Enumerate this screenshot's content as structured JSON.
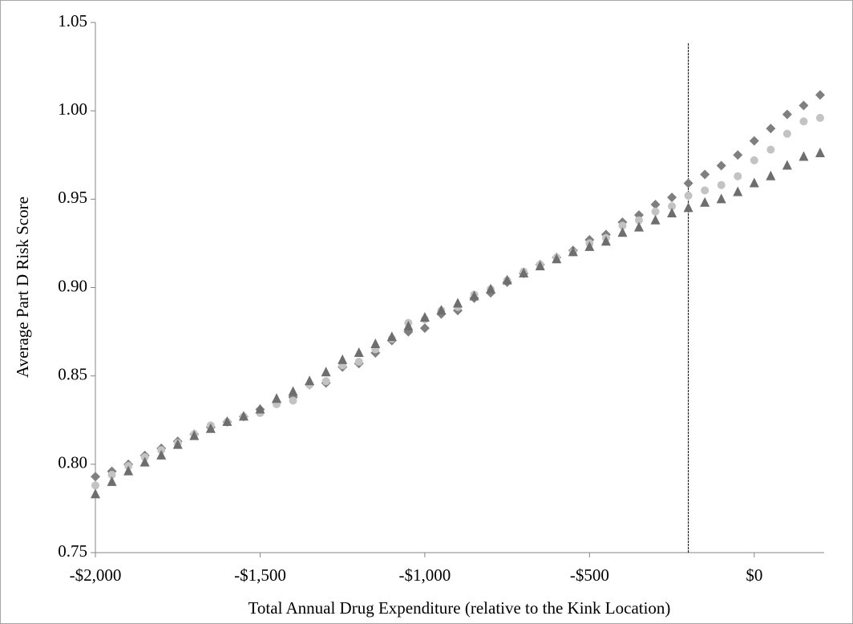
{
  "chart_data": {
    "type": "scatter",
    "x_label": "Total Annual Drug Expenditure (relative to the Kink Location)",
    "y_label": "Average Part D Risk Score",
    "x": [
      -2000,
      -1950,
      -1900,
      -1850,
      -1800,
      -1750,
      -1700,
      -1650,
      -1600,
      -1550,
      -1500,
      -1450,
      -1400,
      -1350,
      -1300,
      -1250,
      -1200,
      -1150,
      -1100,
      -1050,
      -1000,
      -950,
      -900,
      -850,
      -800,
      -750,
      -700,
      -650,
      -600,
      -550,
      -500,
      -450,
      -400,
      -350,
      -300,
      -250,
      -200,
      -150,
      -100,
      -50,
      0,
      50,
      100,
      150,
      200
    ],
    "series": [
      {
        "color": "#7f7f7f",
        "marker": "diamond",
        "values": [
          0.793,
          0.796,
          0.8,
          0.805,
          0.809,
          0.813,
          0.817,
          0.821,
          0.824,
          0.827,
          0.831,
          0.835,
          0.838,
          0.845,
          0.846,
          0.855,
          0.857,
          0.863,
          0.87,
          0.875,
          0.877,
          0.885,
          0.887,
          0.894,
          0.897,
          0.903,
          0.908,
          0.913,
          0.917,
          0.921,
          0.927,
          0.93,
          0.937,
          0.941,
          0.947,
          0.951,
          0.959,
          0.964,
          0.969,
          0.975,
          0.983,
          0.99,
          0.998,
          1.003,
          1.009
        ]
      },
      {
        "color": "#c3c3c3",
        "marker": "circle",
        "values": [
          0.788,
          0.794,
          0.799,
          0.804,
          0.808,
          0.812,
          0.817,
          0.822,
          0.824,
          0.827,
          0.829,
          0.834,
          0.836,
          0.845,
          0.847,
          0.856,
          0.858,
          0.865,
          0.871,
          0.88,
          0.882,
          0.887,
          0.889,
          0.896,
          0.899,
          0.904,
          0.909,
          0.913,
          0.917,
          0.92,
          0.925,
          0.928,
          0.935,
          0.938,
          0.943,
          0.946,
          0.952,
          0.955,
          0.958,
          0.963,
          0.972,
          0.978,
          0.987,
          0.994,
          0.996
        ]
      },
      {
        "color": "#6e6e6e",
        "marker": "triangle",
        "values": [
          0.783,
          0.79,
          0.796,
          0.801,
          0.805,
          0.811,
          0.816,
          0.82,
          0.824,
          0.827,
          0.831,
          0.837,
          0.841,
          0.847,
          0.852,
          0.859,
          0.863,
          0.868,
          0.872,
          0.878,
          0.883,
          0.887,
          0.891,
          0.895,
          0.899,
          0.904,
          0.908,
          0.912,
          0.916,
          0.92,
          0.923,
          0.926,
          0.931,
          0.934,
          0.938,
          0.942,
          0.945,
          0.948,
          0.95,
          0.954,
          0.959,
          0.963,
          0.969,
          0.974,
          0.976
        ]
      }
    ],
    "xlim": [
      -2000,
      200
    ],
    "xticks": [
      {
        "value": -2000,
        "label": "-$2,000"
      },
      {
        "value": -1500,
        "label": "-$1,500"
      },
      {
        "value": -1000,
        "label": "-$1,000"
      },
      {
        "value": -500,
        "label": "-$500"
      },
      {
        "value": 0,
        "label": "$0"
      }
    ],
    "ylim": [
      0.75,
      1.05
    ],
    "yticks": [
      0.75,
      {
        "value": 0.8,
        "label": "0.80"
      },
      0.85,
      {
        "value": 0.9,
        "label": "0.90"
      },
      0.95,
      {
        "value": 1.0,
        "label": "1.00"
      },
      1.05
    ],
    "vline": -200,
    "grid": false
  }
}
